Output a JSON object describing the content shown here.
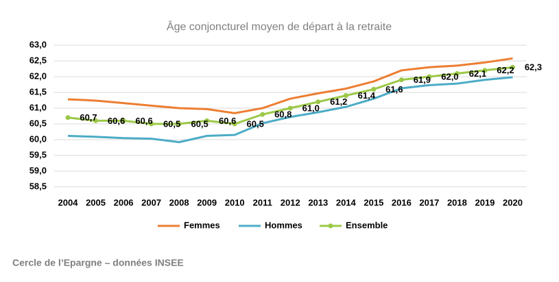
{
  "chart_data": {
    "type": "line",
    "title": "Âge conjoncturel moyen de départ à la retraite",
    "source": "Cercle de l’Epargne – données INSEE",
    "categories": [
      "2004",
      "2005",
      "2006",
      "2007",
      "2008",
      "2009",
      "2010",
      "2011",
      "2012",
      "2013",
      "2014",
      "2015",
      "2016",
      "2017",
      "2018",
      "2019",
      "2020"
    ],
    "series": [
      {
        "name": "Femmes",
        "color": "#ed7d31",
        "values": [
          61.28,
          61.24,
          61.16,
          61.08,
          61.0,
          60.97,
          60.84,
          61.0,
          61.3,
          61.47,
          61.62,
          61.85,
          62.2,
          62.3,
          62.35,
          62.45,
          62.58
        ]
      },
      {
        "name": "Hommes",
        "color": "#4bacc6",
        "values": [
          60.12,
          60.09,
          60.05,
          60.03,
          59.92,
          60.12,
          60.15,
          60.52,
          60.72,
          60.87,
          61.04,
          61.3,
          61.63,
          61.73,
          61.78,
          61.9,
          61.98
        ]
      },
      {
        "name": "Ensemble",
        "color": "#9bc846",
        "markers": true,
        "values": [
          60.7,
          60.6,
          60.6,
          60.5,
          60.5,
          60.6,
          60.5,
          60.8,
          61.0,
          61.2,
          61.4,
          61.6,
          61.9,
          62.0,
          62.1,
          62.2,
          62.3
        ],
        "value_labels": [
          "60,7",
          "60,6",
          "60,6",
          "60,5",
          "60,5",
          "60,6",
          "60,5",
          "60,8",
          "61,0",
          "61,2",
          "61,4",
          "61,6",
          "61,9",
          "62,0",
          "62,1",
          "62,2",
          "62,3"
        ]
      }
    ],
    "ylim": [
      58.5,
      63.0
    ],
    "yticks": [
      {
        "value": 58.5,
        "label": "58,5"
      },
      {
        "value": 59,
        "label": "59,0"
      },
      {
        "value": 59.5,
        "label": "59,5"
      },
      {
        "value": 60,
        "label": "60,0"
      },
      {
        "value": 60.5,
        "label": "60,5"
      },
      {
        "value": 61,
        "label": "61,0"
      },
      {
        "value": 61.5,
        "label": "61,5"
      },
      {
        "value": 62,
        "label": "62,0"
      },
      {
        "value": 62.5,
        "label": "62,5"
      },
      {
        "value": 63,
        "label": "63,0"
      }
    ],
    "grid": true,
    "legend": "bottom"
  }
}
